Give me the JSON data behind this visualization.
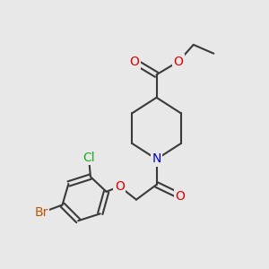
{
  "bg_color": "#e8e8e8",
  "bond_color": "#3a3a3a",
  "bond_width": 1.5,
  "atom_colors": {
    "O": "#dd0000",
    "N": "#0000cc",
    "Cl": "#22aa22",
    "Br": "#bb5500"
  }
}
